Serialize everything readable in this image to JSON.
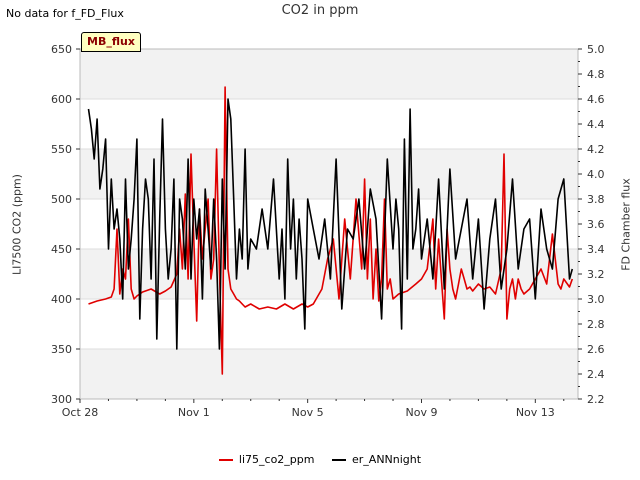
{
  "header": {
    "no_data_note": "No data for f_FD_Flux",
    "badge_label": "MB_flux"
  },
  "colors": {
    "series1": "#e00000",
    "series2": "#000000",
    "band": "#f2f2f2",
    "grid": "#dddddd"
  },
  "chart_data": {
    "type": "line",
    "title": "CO2 in ppm",
    "ylabel_left": "LI7500 CO2 (ppm)",
    "ylabel_right": "FD Chamber flux",
    "ylim_left": [
      300,
      650
    ],
    "ylim_right": [
      2.2,
      5.0
    ],
    "yticks_left": [
      300,
      350,
      400,
      450,
      500,
      550,
      600,
      650
    ],
    "yticks_right": [
      2.2,
      2.4,
      2.6,
      2.8,
      3.0,
      3.2,
      3.4,
      3.6,
      3.8,
      4.0,
      4.2,
      4.4,
      4.6,
      4.8,
      5.0
    ],
    "xlim": [
      0,
      17.5
    ],
    "xticks": [
      {
        "value": 0,
        "label": "Oct 28"
      },
      {
        "value": 4,
        "label": "Nov 1"
      },
      {
        "value": 8,
        "label": "Nov 5"
      },
      {
        "value": 12,
        "label": "Nov 9"
      },
      {
        "value": 16,
        "label": "Nov 13"
      }
    ],
    "grid": true,
    "legend_position": "bottom",
    "series": [
      {
        "name": "li75_co2_ppm",
        "axis": "left",
        "x": [
          0.3,
          0.6,
          0.9,
          1.1,
          1.2,
          1.3,
          1.4,
          1.5,
          1.6,
          1.7,
          1.8,
          1.9,
          2.0,
          2.2,
          2.5,
          2.8,
          3.0,
          3.2,
          3.4,
          3.5,
          3.6,
          3.7,
          3.8,
          3.9,
          4.0,
          4.1,
          4.2,
          4.3,
          4.4,
          4.5,
          4.6,
          4.7,
          4.8,
          4.9,
          5.0,
          5.1,
          5.2,
          5.3,
          5.4,
          5.5,
          5.6,
          5.7,
          5.8,
          6.0,
          6.3,
          6.6,
          6.9,
          7.2,
          7.5,
          7.8,
          8.0,
          8.2,
          8.5,
          8.7,
          8.9,
          9.1,
          9.3,
          9.5,
          9.7,
          9.9,
          10.0,
          10.1,
          10.2,
          10.3,
          10.4,
          10.5,
          10.6,
          10.7,
          10.8,
          10.9,
          11.0,
          11.2,
          11.5,
          11.8,
          12.0,
          12.2,
          12.4,
          12.5,
          12.6,
          12.7,
          12.8,
          12.9,
          13.0,
          13.1,
          13.2,
          13.3,
          13.4,
          13.5,
          13.6,
          13.7,
          13.8,
          14.0,
          14.2,
          14.4,
          14.6,
          14.8,
          14.9,
          15.0,
          15.1,
          15.2,
          15.3,
          15.4,
          15.5,
          15.6,
          15.8,
          16.0,
          16.2,
          16.4,
          16.6,
          16.8,
          16.9,
          17.0,
          17.2,
          17.3
        ],
        "y": [
          395,
          398,
          400,
          402,
          410,
          470,
          405,
          430,
          420,
          480,
          410,
          400,
          403,
          407,
          410,
          405,
          408,
          412,
          425,
          470,
          430,
          505,
          420,
          545,
          460,
          378,
          490,
          440,
          470,
          500,
          420,
          440,
          550,
          430,
          325,
          612,
          430,
          410,
          405,
          400,
          398,
          395,
          392,
          395,
          390,
          392,
          390,
          395,
          390,
          395,
          392,
          395,
          410,
          440,
          460,
          400,
          480,
          420,
          500,
          430,
          520,
          420,
          480,
          400,
          450,
          398,
          420,
          500,
          410,
          420,
          400,
          405,
          408,
          415,
          420,
          430,
          480,
          410,
          460,
          420,
          380,
          470,
          430,
          410,
          400,
          415,
          430,
          420,
          410,
          412,
          408,
          415,
          410,
          412,
          405,
          430,
          545,
          380,
          410,
          420,
          400,
          420,
          410,
          405,
          410,
          420,
          430,
          415,
          465,
          415,
          410,
          420,
          412,
          420
        ]
      },
      {
        "name": "er_ANNnight",
        "axis": "left",
        "x": [
          0.3,
          0.4,
          0.5,
          0.6,
          0.7,
          0.8,
          0.9,
          1.0,
          1.1,
          1.2,
          1.3,
          1.4,
          1.5,
          1.6,
          1.7,
          1.8,
          1.9,
          2.0,
          2.1,
          2.2,
          2.3,
          2.4,
          2.5,
          2.6,
          2.7,
          2.8,
          2.9,
          3.0,
          3.1,
          3.2,
          3.3,
          3.4,
          3.5,
          3.6,
          3.7,
          3.8,
          3.9,
          4.0,
          4.1,
          4.2,
          4.3,
          4.4,
          4.5,
          4.6,
          4.7,
          4.8,
          4.9,
          5.0,
          5.1,
          5.2,
          5.3,
          5.4,
          5.5,
          5.6,
          5.7,
          5.8,
          5.9,
          6.0,
          6.2,
          6.4,
          6.6,
          6.8,
          7.0,
          7.1,
          7.2,
          7.3,
          7.4,
          7.5,
          7.6,
          7.7,
          7.8,
          7.9,
          8.0,
          8.2,
          8.4,
          8.6,
          8.8,
          9.0,
          9.2,
          9.4,
          9.6,
          9.8,
          10.0,
          10.2,
          10.4,
          10.6,
          10.8,
          11.0,
          11.1,
          11.2,
          11.3,
          11.4,
          11.5,
          11.6,
          11.7,
          11.8,
          11.9,
          12.0,
          12.2,
          12.4,
          12.6,
          12.8,
          13.0,
          13.2,
          13.4,
          13.6,
          13.8,
          14.0,
          14.2,
          14.4,
          14.6,
          14.8,
          15.0,
          15.2,
          15.4,
          15.6,
          15.8,
          16.0,
          16.2,
          16.4,
          16.6,
          16.8,
          17.0,
          17.2,
          17.3
        ],
        "y": [
          590,
          570,
          540,
          580,
          510,
          530,
          560,
          450,
          520,
          470,
          490,
          460,
          400,
          520,
          430,
          460,
          500,
          560,
          380,
          470,
          520,
          500,
          420,
          540,
          360,
          480,
          580,
          470,
          420,
          450,
          520,
          350,
          500,
          480,
          430,
          540,
          420,
          500,
          460,
          490,
          400,
          510,
          470,
          430,
          500,
          440,
          350,
          520,
          430,
          600,
          580,
          500,
          420,
          470,
          440,
          550,
          430,
          460,
          450,
          490,
          450,
          520,
          420,
          470,
          400,
          540,
          450,
          500,
          420,
          480,
          440,
          370,
          500,
          470,
          440,
          480,
          420,
          540,
          390,
          470,
          460,
          500,
          430,
          510,
          480,
          380,
          540,
          450,
          500,
          470,
          370,
          560,
          420,
          590,
          450,
          470,
          510,
          440,
          480,
          420,
          520,
          410,
          530,
          440,
          470,
          500,
          420,
          480,
          390,
          460,
          500,
          410,
          450,
          520,
          430,
          470,
          480,
          400,
          490,
          450,
          430,
          500,
          520,
          420,
          430
        ]
      }
    ]
  }
}
